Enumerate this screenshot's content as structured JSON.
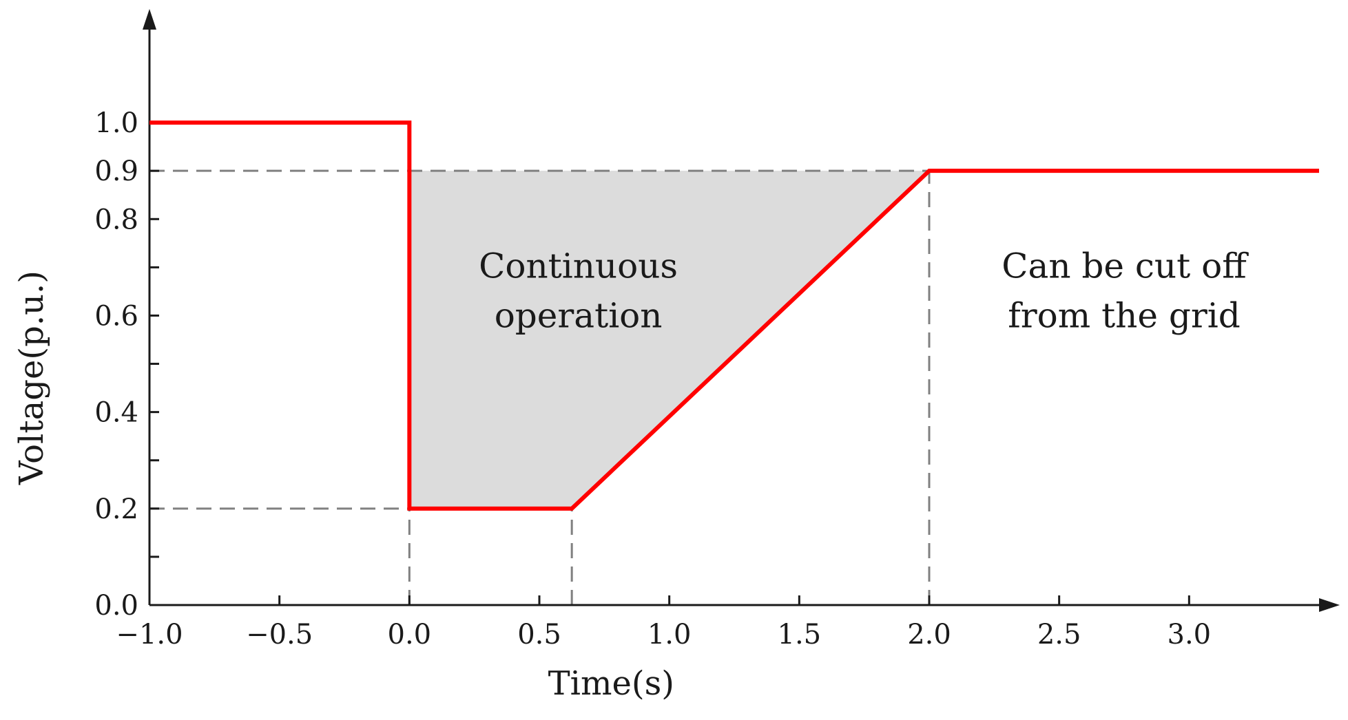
{
  "chart_data": {
    "type": "line",
    "title": "",
    "xlabel": "Time(s)",
    "ylabel": "Voltage(p.u.)",
    "xlim": [
      -1.0,
      3.5
    ],
    "ylim": [
      0.0,
      1.1
    ],
    "x_ticks": [
      -1.0,
      -0.5,
      0.0,
      0.5,
      1.0,
      1.5,
      2.0,
      2.5,
      3.0
    ],
    "x_tick_labels": [
      "−1.0",
      "−0.5",
      "0.0",
      "0.5",
      "1.0",
      "1.5",
      "2.0",
      "2.5",
      "3.0"
    ],
    "y_ticks": [
      0.0,
      0.2,
      0.4,
      0.6,
      0.8,
      0.9,
      1.0
    ],
    "y_tick_labels": [
      "0.0",
      "0.2",
      "0.4",
      "0.6",
      "0.8",
      "0.9",
      "1.0"
    ],
    "y_minor_ticks": [
      0.1,
      0.3,
      0.5,
      0.7
    ],
    "grid": false,
    "series": [
      {
        "color": "#ff0000",
        "x": [
          -1.0,
          0.0,
          0.0,
          0.625,
          2.0,
          3.5
        ],
        "y": [
          1.0,
          1.0,
          0.2,
          0.2,
          0.9,
          0.9
        ]
      }
    ],
    "shaded_region": {
      "color": "#dcdcdc",
      "x": [
        0.0,
        2.0,
        0.625,
        0.0
      ],
      "y": [
        0.9,
        0.9,
        0.2,
        0.2
      ]
    },
    "reference_lines": [
      {
        "orientation": "horizontal",
        "value": 0.9,
        "from": -1.0,
        "to": 2.0,
        "color": "#808080"
      },
      {
        "orientation": "horizontal",
        "value": 0.2,
        "from": -1.0,
        "to": 0.0,
        "color": "#808080"
      },
      {
        "orientation": "vertical",
        "value": 0.0,
        "from": 0.0,
        "to": 0.2,
        "color": "#808080"
      },
      {
        "orientation": "vertical",
        "value": 0.625,
        "from": 0.0,
        "to": 0.2,
        "color": "#808080"
      },
      {
        "orientation": "vertical",
        "value": 2.0,
        "from": 0.0,
        "to": 0.9,
        "color": "#808080"
      }
    ],
    "annotations": [
      {
        "lines": [
          "Continuous",
          "operation"
        ],
        "x": 0.65,
        "y": 0.63
      },
      {
        "lines": [
          "Can be cut off",
          "from the grid"
        ],
        "x": 2.75,
        "y": 0.63
      }
    ]
  }
}
